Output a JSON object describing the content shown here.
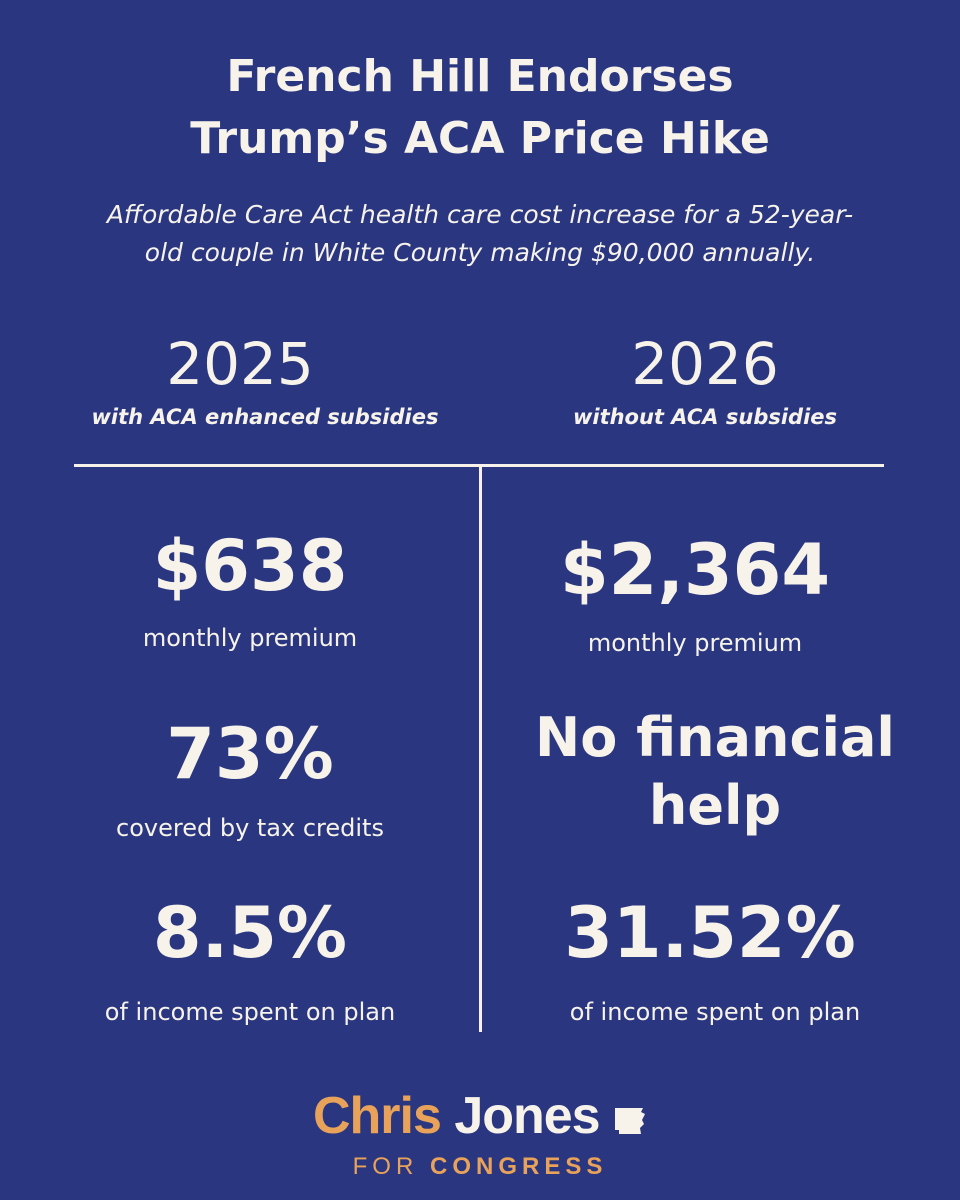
{
  "header": {
    "title_line1": "French Hill Endorses",
    "title_line2": "Trump’s ACA Price Hike",
    "subtitle_line1": "Affordable Care Act health care cost increase for a 52-year-",
    "subtitle_line2": "old couple in White County making $90,000 annually."
  },
  "left": {
    "year": "2025",
    "note": "with ACA enhanced subsidies",
    "premium": "$638",
    "premium_label": "monthly premium",
    "coverage": "73%",
    "coverage_label": "covered by tax credits",
    "income": "8.5%",
    "income_label": "of income spent on plan"
  },
  "right": {
    "year": "2026",
    "note": "without ACA subsidies",
    "premium": "$2,364",
    "premium_label": "monthly premium",
    "help_line1": "No financial",
    "help_line2": "help",
    "income": "31.52%",
    "income_label": "of income spent on plan"
  },
  "branding": {
    "first_name": "Chris",
    "last_name": "Jones",
    "tag_for": "FOR",
    "tag_congress": "CONGRESS",
    "accent_color": "#e8a25a",
    "background_color": "#2a3780"
  }
}
